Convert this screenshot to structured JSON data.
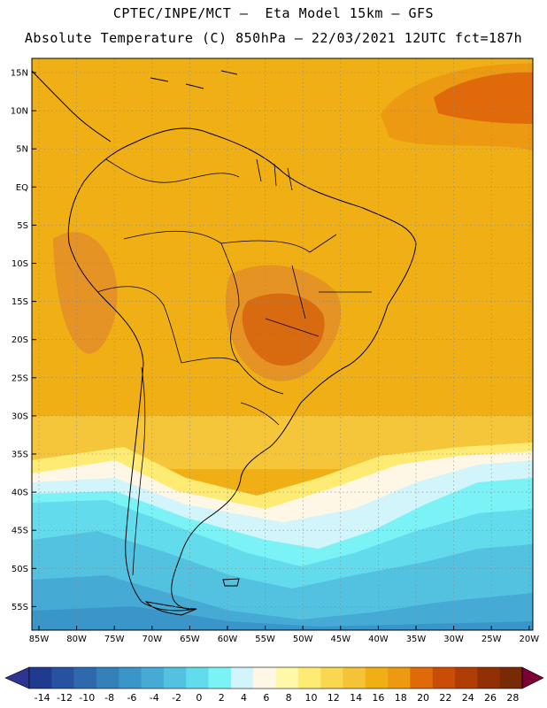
{
  "title": {
    "line1": "CPTEC/INPE/MCT –  Eta Model 15km – GFS",
    "line2": "Absolute Temperature (C) 850hPa – 22/03/2021 12UTC fct=187h"
  },
  "map": {
    "lat_labels": [
      "15N",
      "10N",
      "5N",
      "EQ",
      "5S",
      "10S",
      "15S",
      "20S",
      "25S",
      "30S",
      "35S",
      "40S",
      "45S",
      "50S",
      "55S"
    ],
    "lon_labels": [
      "85W",
      "80W",
      "75W",
      "70W",
      "65W",
      "60W",
      "55W",
      "50W",
      "45W",
      "40W",
      "35W",
      "30W",
      "25W",
      "20W"
    ]
  },
  "colorbar": {
    "labels": [
      "-14",
      "-12",
      "-10",
      "-8",
      "-6",
      "-4",
      "-2",
      "0",
      "2",
      "4",
      "6",
      "8",
      "10",
      "12",
      "14",
      "16",
      "18",
      "20",
      "22",
      "24",
      "26",
      "28"
    ],
    "colors": [
      "#1f3b8e",
      "#27529f",
      "#2e69ae",
      "#3380ba",
      "#3a96c8",
      "#45abd5",
      "#52c2e0",
      "#62dbec",
      "#7af2f6",
      "#d2f4fb",
      "#fff7e6",
      "#fff8a8",
      "#feeb74",
      "#f9d74f",
      "#f4c337",
      "#f0af14",
      "#eb9a12",
      "#e06a09",
      "#ca4d07",
      "#b03c06",
      "#912f05",
      "#782a04"
    ],
    "start_color": "#2d3591",
    "end_color": "#7b0036"
  },
  "colors": {
    "coastline": "#000000",
    "ocean_warm": "#f0af14",
    "land_hot": "#d86a0f"
  }
}
